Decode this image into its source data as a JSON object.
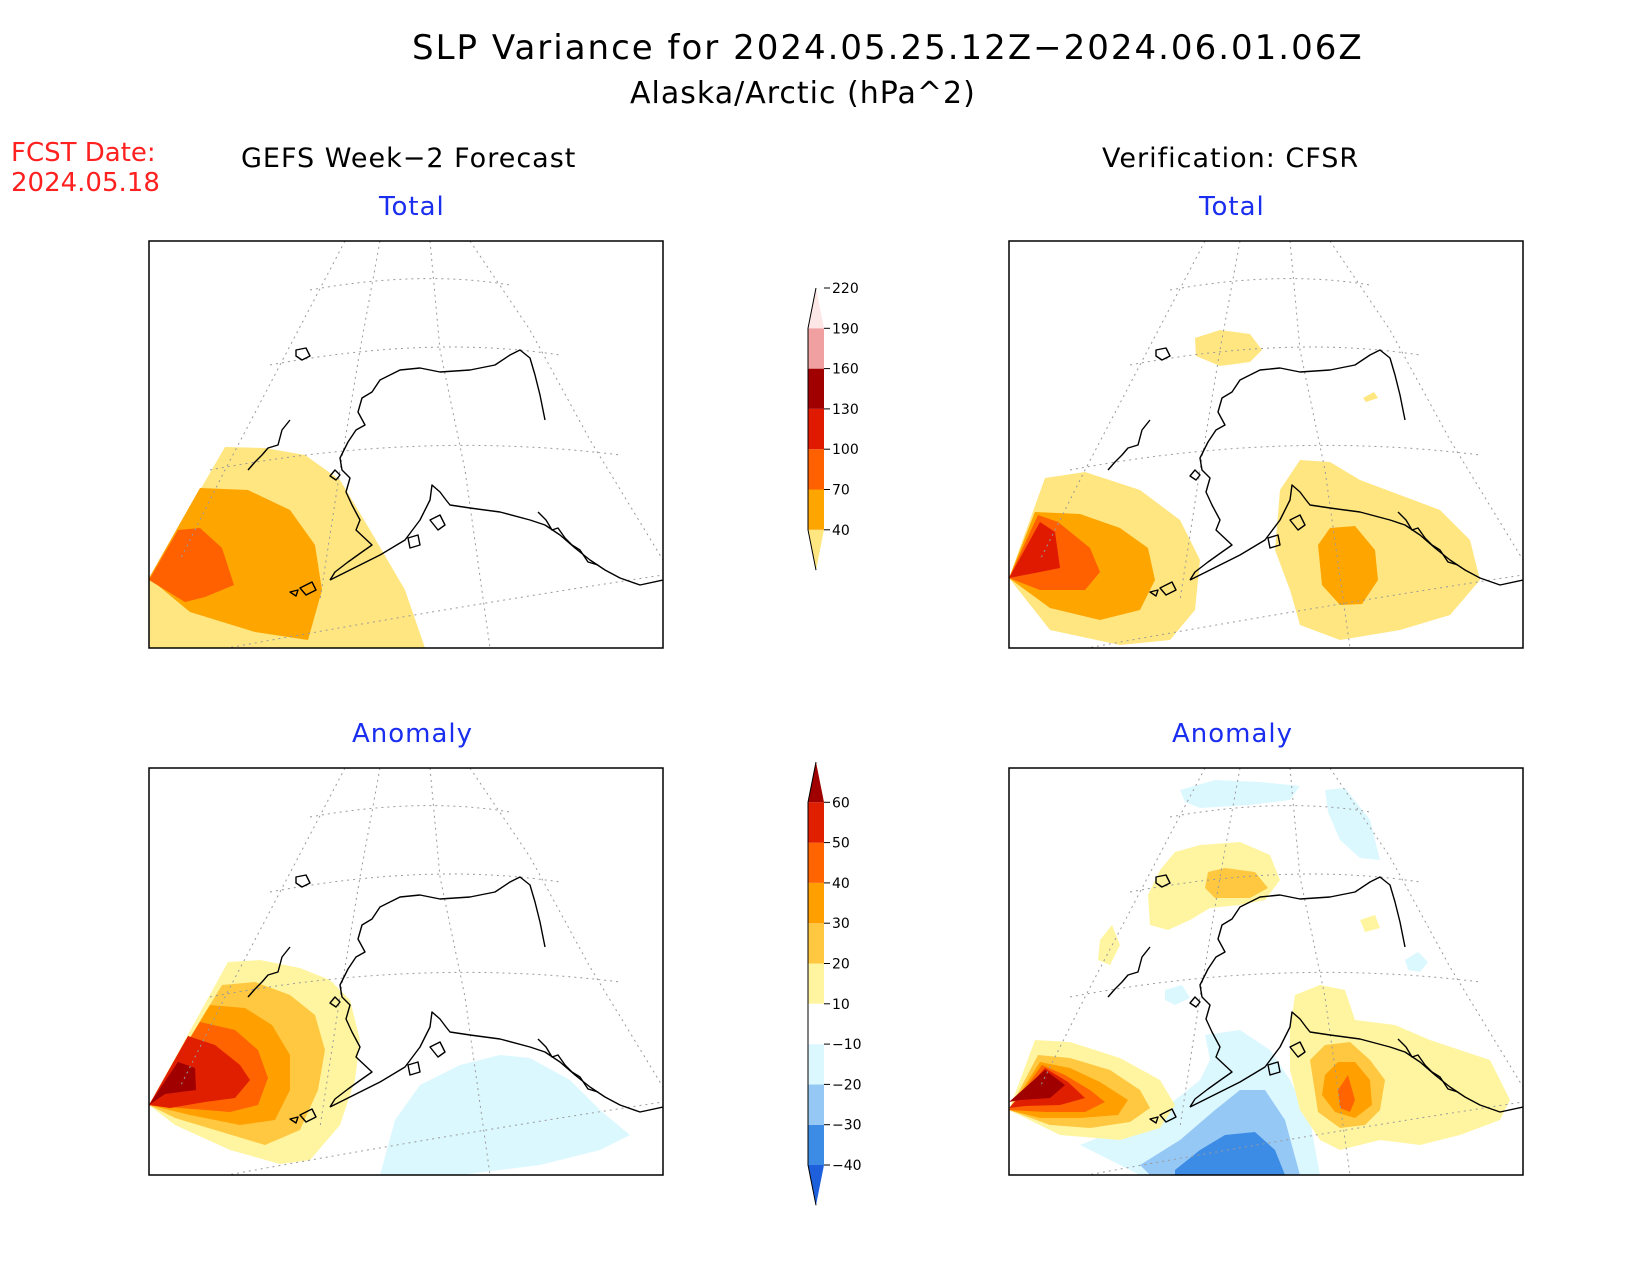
{
  "header": {
    "title": "SLP Variance for 2024.05.25.12Z−2024.06.01.06Z",
    "subtitle": "Alaska/Arctic (hPa^2)",
    "fcst_date_label": "FCST Date:",
    "fcst_date_value": "2024.05.18"
  },
  "columns": {
    "left": "GEFS Week−2 Forecast",
    "right": "Verification: CFSR"
  },
  "panels": {
    "top_left": "Total",
    "top_right": "Total",
    "bottom_left": "Anomaly",
    "bottom_right": "Anomaly"
  },
  "colorbars": {
    "total": {
      "labels": [
        "40",
        "70",
        "100",
        "130",
        "160",
        "190",
        "220"
      ],
      "colors": [
        "#ffe680",
        "#ffa500",
        "#ff6000",
        "#e01a00",
        "#a00000",
        "#f0a0a0",
        "#fde6e6"
      ]
    },
    "anomaly": {
      "labels": [
        "−40",
        "−30",
        "−20",
        "−10",
        "10",
        "20",
        "30",
        "40",
        "50",
        "60"
      ],
      "colors": [
        "#1e5fdc",
        "#3c8ce6",
        "#96c8f5",
        "#dcf8ff",
        "#ffffff",
        "#fff5a0",
        "#ffc840",
        "#ffa000",
        "#ff6400",
        "#e01e00",
        "#a00000"
      ]
    }
  }
}
